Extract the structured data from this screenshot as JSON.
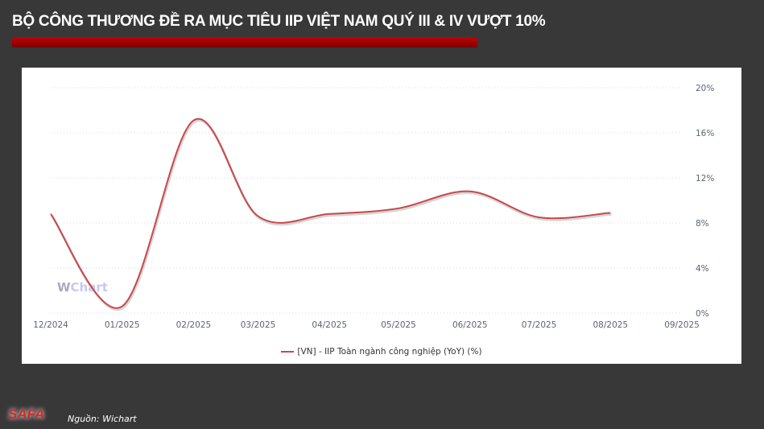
{
  "header": {
    "title": "BỘ CÔNG THƯƠNG ĐỀ RA MỤC TIÊU IIP VIỆT NAM QUÝ III & IV VƯỢT 10%"
  },
  "footer": {
    "logo": "SAFA",
    "source": "Nguồn: Wichart"
  },
  "watermark": {
    "w": "W",
    "text": "Chart"
  },
  "chart_data": {
    "type": "line",
    "title": "",
    "x": [
      "12/2024",
      "01/2025",
      "02/2025",
      "03/2025",
      "04/2025",
      "05/2025",
      "06/2025",
      "07/2025",
      "08/2025"
    ],
    "x_ticks": [
      "12/2024",
      "01/2025",
      "02/2025",
      "03/2025",
      "04/2025",
      "05/2025",
      "06/2025",
      "07/2025",
      "08/2025",
      "09/2025"
    ],
    "series": [
      {
        "name": "[VN] - IIP Toàn ngành công nghiệp (YoY) (%)",
        "values": [
          8.8,
          0.6,
          17.1,
          8.6,
          8.8,
          9.3,
          10.8,
          8.5,
          8.9
        ],
        "color": "#c8484a"
      }
    ],
    "y_ticks": [
      "0%",
      "4%",
      "8%",
      "12%",
      "16%",
      "20%"
    ],
    "ylim": [
      0,
      20
    ],
    "y_axis_position": "right",
    "grid": true,
    "legend": "bottom"
  }
}
